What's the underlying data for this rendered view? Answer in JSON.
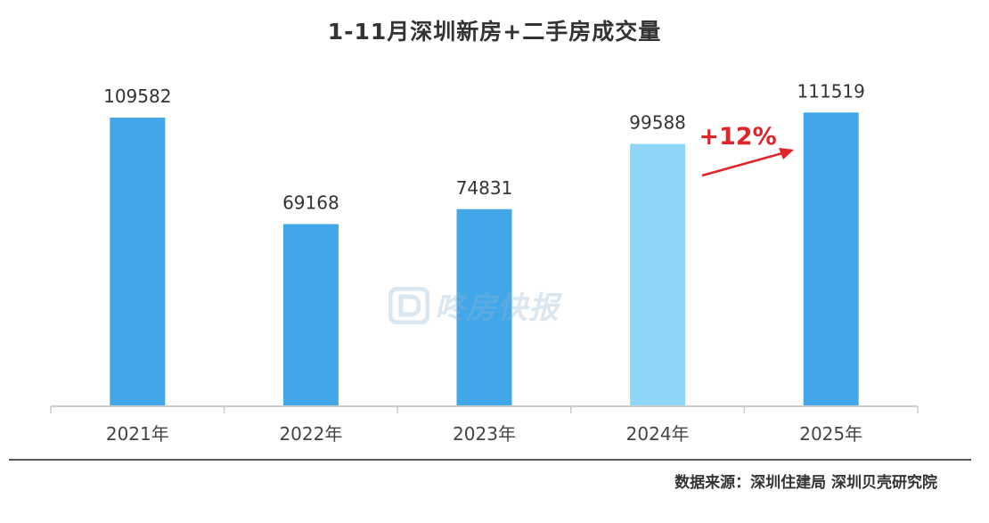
{
  "chart_data": {
    "type": "bar",
    "title": "1-11月深圳新房+二手房成交量",
    "categories": [
      "2021年",
      "2022年",
      "2023年",
      "2024年",
      "2025年"
    ],
    "values": [
      109582,
      69168,
      74831,
      99588,
      111519
    ],
    "data_labels": [
      "109582",
      "69168",
      "74831",
      "99588",
      "111519"
    ],
    "xlabel": "",
    "ylabel": "",
    "ylim": [
      0,
      115000
    ],
    "grid": false,
    "legend": "none",
    "bar_colors": [
      "#41a7e8",
      "#41a7e8",
      "#41a7e8",
      "#8dd6f7",
      "#41a7e8"
    ],
    "annotation": {
      "text": "+12%",
      "color": "#e0242a",
      "from_category": "2024年",
      "to_category": "2025年"
    }
  },
  "watermark": {
    "text": "咚房快报",
    "icon": "d-logo-icon"
  },
  "source": "数据来源：深圳住建局 深圳贝壳研究院",
  "colors": {
    "axis": "#cccccc",
    "rule": "#5a5a5a"
  }
}
